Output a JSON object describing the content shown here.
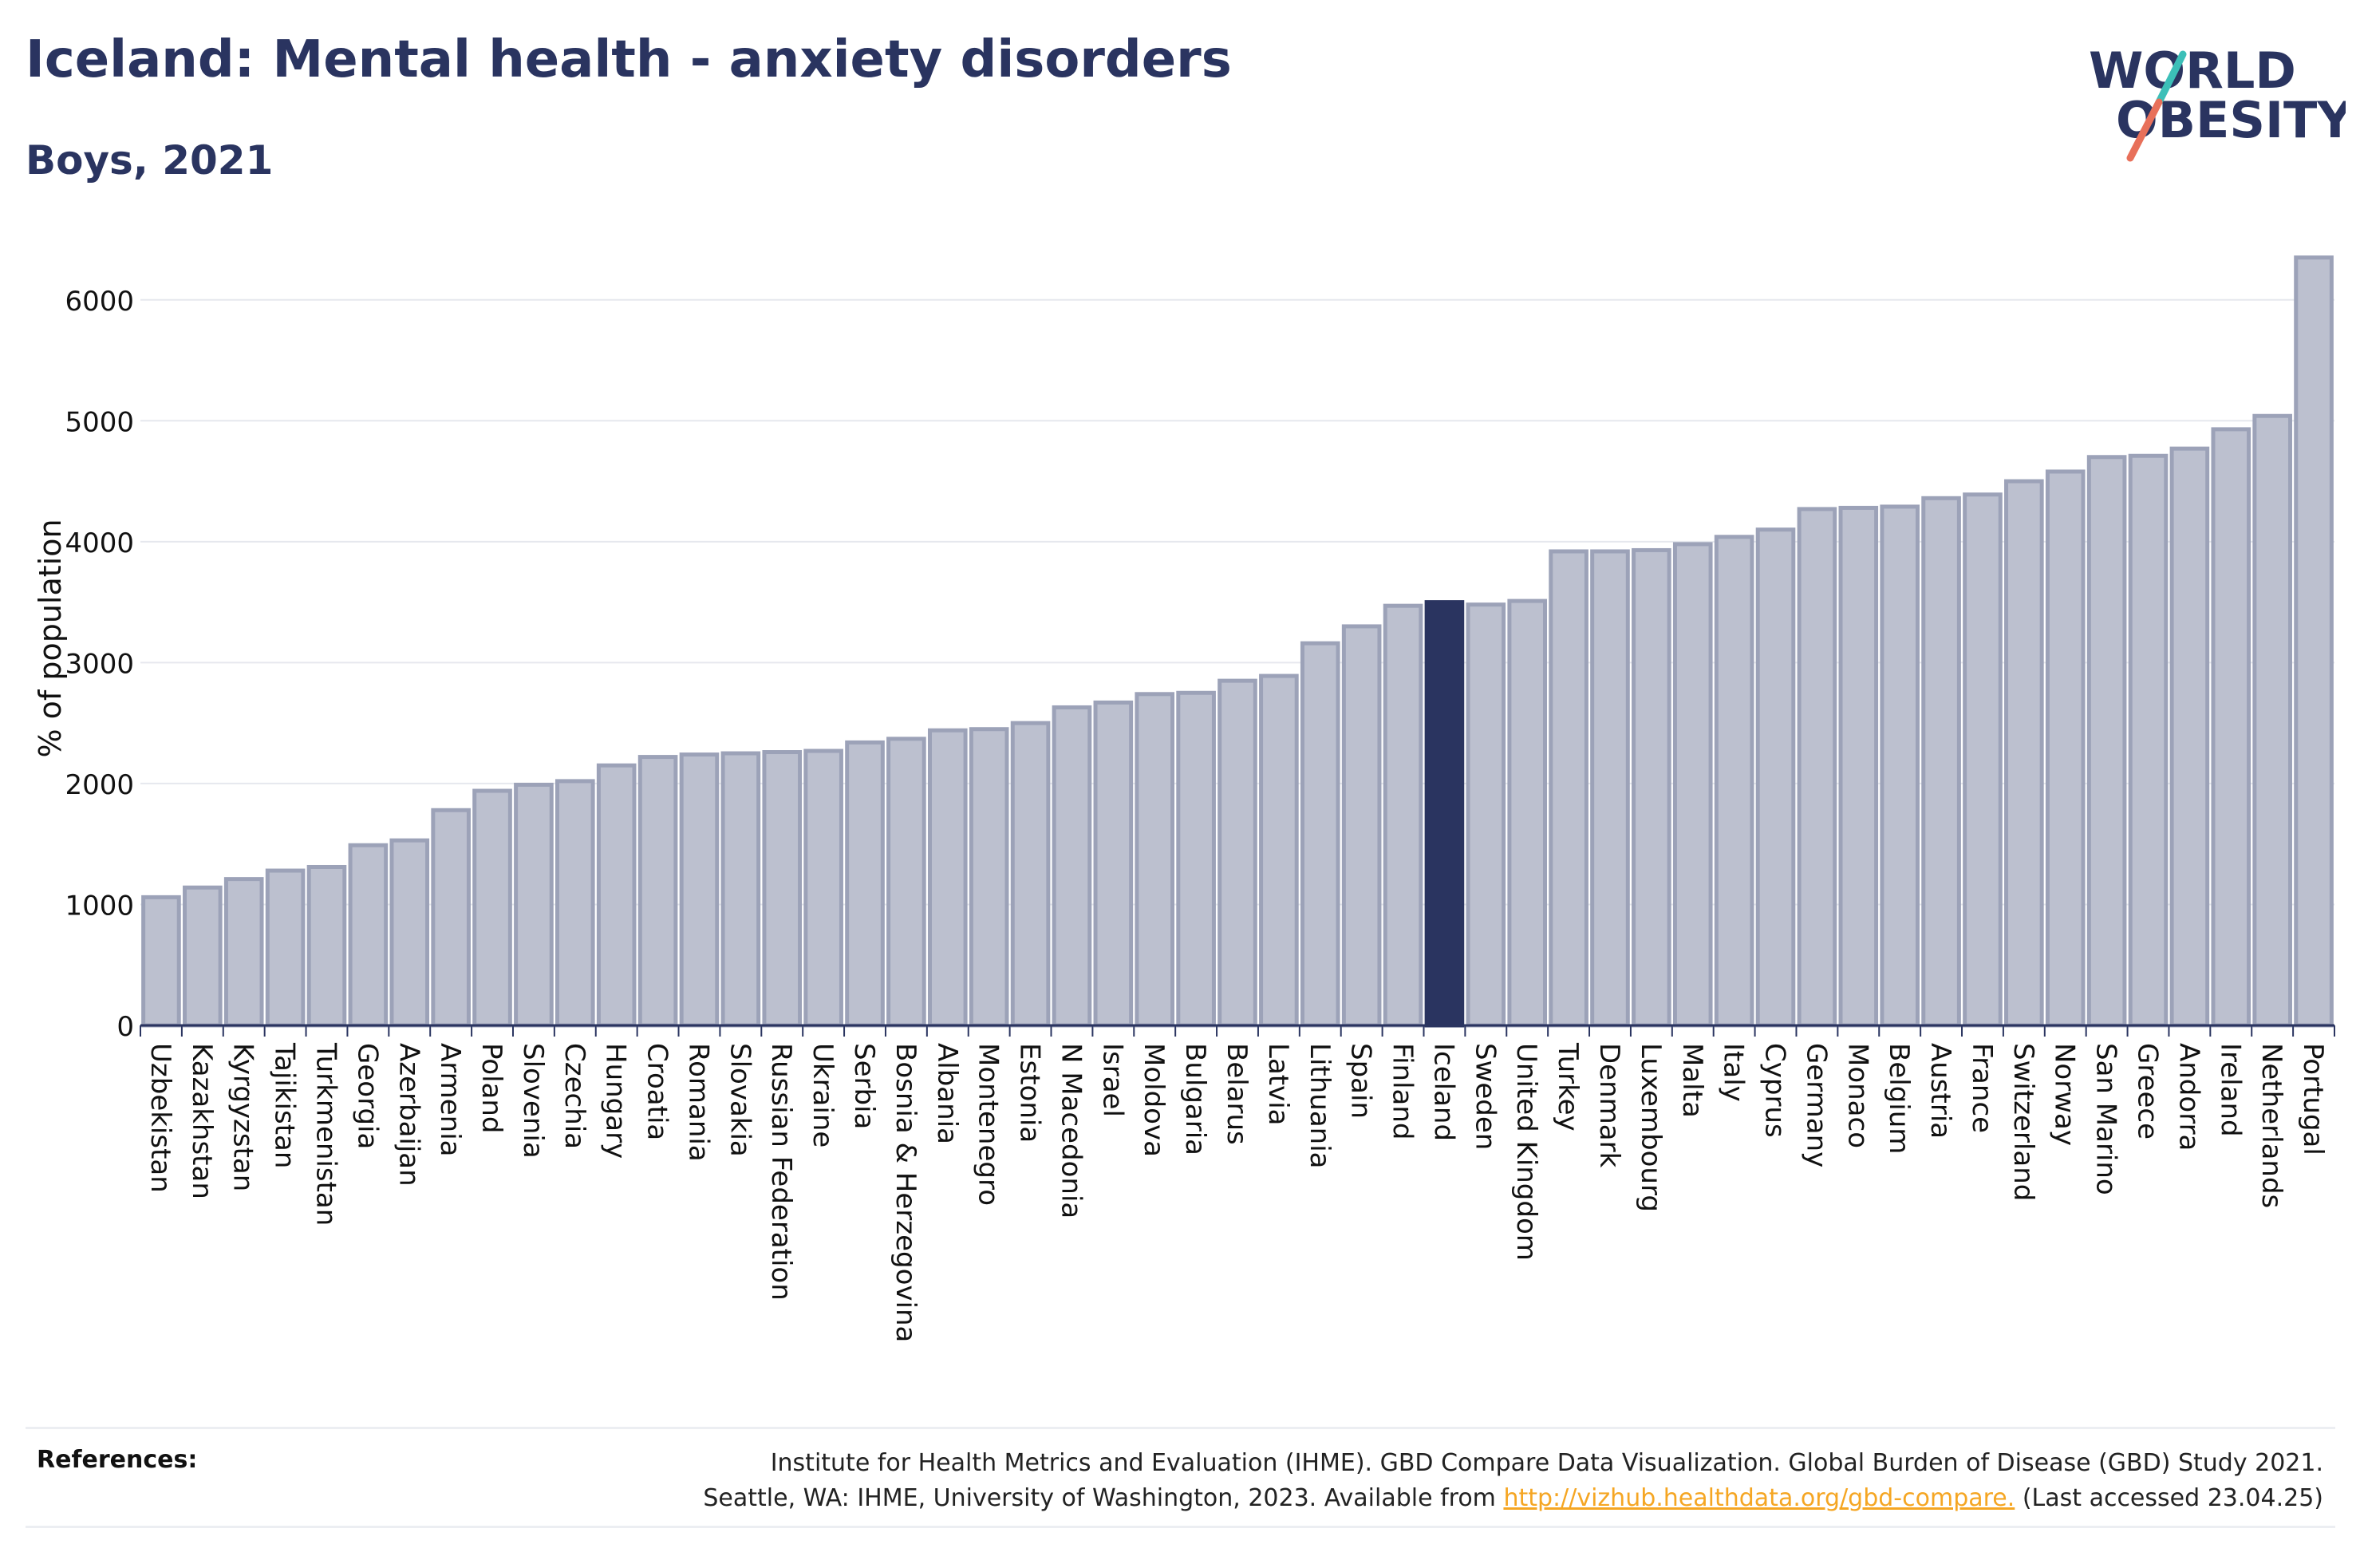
{
  "header": {
    "title": "Iceland: Mental health - anxiety disorders",
    "subtitle": "Boys, 2021"
  },
  "logo": {
    "line1": "WORLD",
    "line2": "OBESITY"
  },
  "colors": {
    "bar": "#bcc0cf",
    "bar_stroke": "#9ca2b8",
    "highlight": "#2a3460",
    "title": "#2a3460",
    "grid": "#e6e8ee",
    "link": "#f5a623",
    "logo_teal": "#3cbfb8",
    "logo_coral": "#e8705a"
  },
  "chart_data": {
    "type": "bar",
    "title": "Iceland: Mental health - anxiety disorders",
    "subtitle": "Boys, 2021",
    "xlabel": "",
    "ylabel": "% of population",
    "ylim": [
      0,
      6500
    ],
    "yticks": [
      0,
      1000,
      2000,
      3000,
      4000,
      5000,
      6000
    ],
    "grid": true,
    "highlight": "Iceland",
    "categories": [
      "Uzbekistan",
      "Kazakhstan",
      "Kyrgyzstan",
      "Tajikistan",
      "Turkmenistan",
      "Georgia",
      "Azerbaijan",
      "Armenia",
      "Poland",
      "Slovenia",
      "Czechia",
      "Hungary",
      "Croatia",
      "Romania",
      "Slovakia",
      "Russian Federation",
      "Ukraine",
      "Serbia",
      "Bosnia & Herzegovina",
      "Albania",
      "Montenegro",
      "Estonia",
      "N Macedonia",
      "Israel",
      "Moldova",
      "Bulgaria",
      "Belarus",
      "Latvia",
      "Lithuania",
      "Spain",
      "Finland",
      "Iceland",
      "Sweden",
      "United Kingdom",
      "Turkey",
      "Denmark",
      "Luxembourg",
      "Malta",
      "Italy",
      "Cyprus",
      "Germany",
      "Monaco",
      "Belgium",
      "Austria",
      "France",
      "Switzerland",
      "Norway",
      "San Marino",
      "Greece",
      "Andorra",
      "Ireland",
      "Netherlands",
      "Portugal"
    ],
    "values": [
      1060,
      1140,
      1210,
      1280,
      1310,
      1490,
      1530,
      1780,
      1940,
      1990,
      2020,
      2150,
      2220,
      2240,
      2250,
      2260,
      2270,
      2340,
      2370,
      2440,
      2450,
      2500,
      2630,
      2670,
      2740,
      2750,
      2850,
      2890,
      3160,
      3300,
      3470,
      3500,
      3480,
      3510,
      3920,
      3920,
      3930,
      3980,
      4040,
      4100,
      4270,
      4280,
      4290,
      4360,
      4390,
      4500,
      4580,
      4700,
      4710,
      4770,
      4930,
      5040,
      6350
    ]
  },
  "references": {
    "label": "References:",
    "line1": "Institute for Health Metrics and Evaluation (IHME). GBD Compare Data Visualization. Global Burden of Disease (GBD) Study 2021.",
    "line2_prefix": "Seattle, WA: IHME, University of Washington, 2023. Available from ",
    "link": "http://vizhub.healthdata.org/gbd-compare.",
    "line2_suffix": " (Last accessed 23.04.25)"
  }
}
